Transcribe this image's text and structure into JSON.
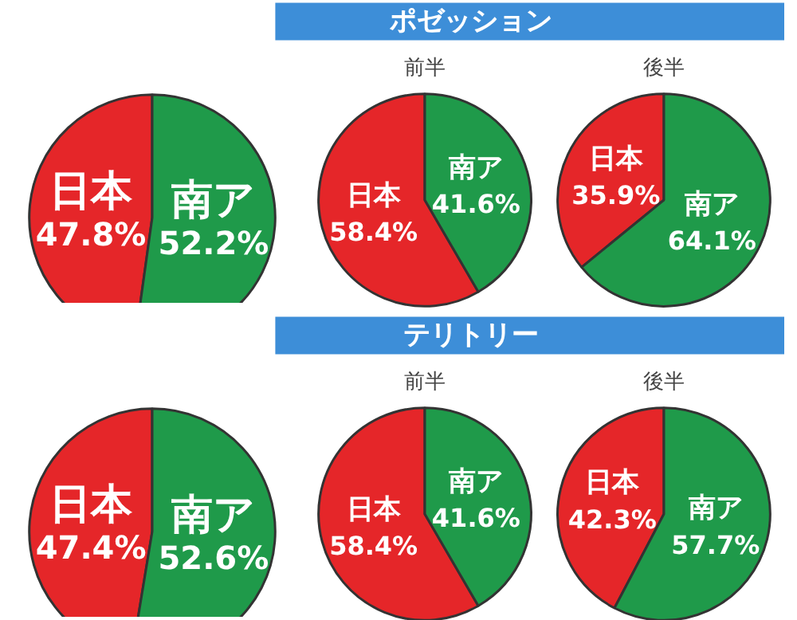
{
  "chart_data": [
    {
      "type": "other",
      "title": "ポゼッション"
    },
    {
      "type": "pie",
      "categories": [
        "日本",
        "南ア"
      ],
      "values": [
        47.8,
        52.2
      ],
      "colors": [
        "#e52629",
        "#1f9a4a"
      ],
      "value_labels": [
        "47.8%",
        "52.2%"
      ]
    },
    {
      "type": "pie",
      "title": "前半",
      "categories": [
        "日本",
        "南ア"
      ],
      "values": [
        58.4,
        41.6
      ],
      "colors": [
        "#e52629",
        "#1f9a4a"
      ],
      "value_labels": [
        "58.4%",
        "41.6%"
      ]
    },
    {
      "type": "pie",
      "title": "後半",
      "categories": [
        "日本",
        "南ア"
      ],
      "values": [
        35.9,
        64.1
      ],
      "colors": [
        "#e52629",
        "#1f9a4a"
      ],
      "value_labels": [
        "35.9%",
        "64.1%"
      ]
    },
    {
      "type": "other",
      "title": "テリトリー"
    },
    {
      "type": "pie",
      "categories": [
        "日本",
        "南ア"
      ],
      "values": [
        47.4,
        52.6
      ],
      "colors": [
        "#e52629",
        "#1f9a4a"
      ],
      "value_labels": [
        "47.4%",
        "52.6%"
      ]
    },
    {
      "type": "pie",
      "title": "前半",
      "categories": [
        "日本",
        "南ア"
      ],
      "values": [
        58.4,
        41.6
      ],
      "colors": [
        "#e52629",
        "#1f9a4a"
      ],
      "value_labels": [
        "58.4%",
        "41.6%"
      ]
    },
    {
      "type": "pie",
      "title": "後半",
      "categories": [
        "日本",
        "南ア"
      ],
      "values": [
        42.3,
        57.7
      ],
      "colors": [
        "#e52629",
        "#1f9a4a"
      ],
      "value_labels": [
        "42.3%",
        "57.7%"
      ]
    }
  ]
}
